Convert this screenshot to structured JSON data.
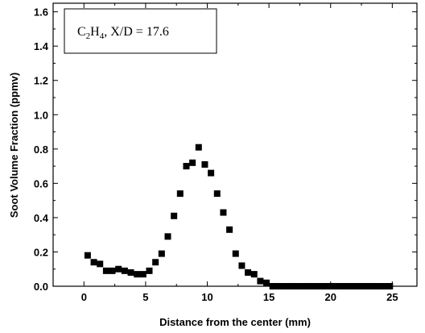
{
  "chart_data": {
    "type": "scatter",
    "xlabel": "Distance from the center (mm)",
    "ylabel": "Soot Volume Fraction (ppmv)",
    "xlim": [
      -2.5,
      27
    ],
    "ylim": [
      0,
      1.65
    ],
    "x_ticks": [
      "0",
      "5",
      "10",
      "15",
      "20",
      "25"
    ],
    "y_ticks": [
      "0.0",
      "0.2",
      "0.4",
      "0.6",
      "0.8",
      "1.0",
      "1.2",
      "1.4",
      "1.6"
    ],
    "annotation": {
      "species": "C",
      "sub": "2",
      "species2": "H",
      "sub2": "4",
      "rest": ", X/D = 17.6"
    },
    "marker_color": "#000000",
    "series": [
      {
        "marker": "square",
        "x": [
          0.3,
          0.8,
          1.3,
          1.8,
          2.3,
          2.8,
          3.3,
          3.8,
          4.3,
          4.8,
          5.3,
          5.8,
          6.3,
          6.8,
          7.3,
          7.8,
          8.3,
          8.8,
          9.3,
          9.8,
          10.3,
          10.8,
          11.3,
          11.8,
          12.3,
          12.8,
          13.3,
          13.8,
          14.3,
          14.8,
          15.3,
          15.8,
          16.3,
          16.8,
          17.3,
          17.8,
          18.3,
          18.8,
          19.3,
          19.8,
          20.3,
          20.8,
          21.3,
          21.8,
          22.3,
          22.8,
          23.3,
          23.8,
          24.3,
          24.8
        ],
        "y": [
          0.18,
          0.14,
          0.13,
          0.09,
          0.09,
          0.1,
          0.09,
          0.08,
          0.07,
          0.07,
          0.09,
          0.14,
          0.19,
          0.29,
          0.41,
          0.54,
          0.7,
          0.72,
          0.81,
          0.71,
          0.66,
          0.54,
          0.43,
          0.33,
          0.19,
          0.12,
          0.08,
          0.07,
          0.03,
          0.02,
          0.0,
          0.0,
          0.0,
          0.0,
          0.0,
          0.0,
          0.0,
          0.0,
          0.0,
          0.0,
          0.0,
          0.0,
          0.0,
          0.0,
          0.0,
          0.0,
          0.0,
          0.0,
          0.0,
          0.0
        ]
      }
    ]
  }
}
